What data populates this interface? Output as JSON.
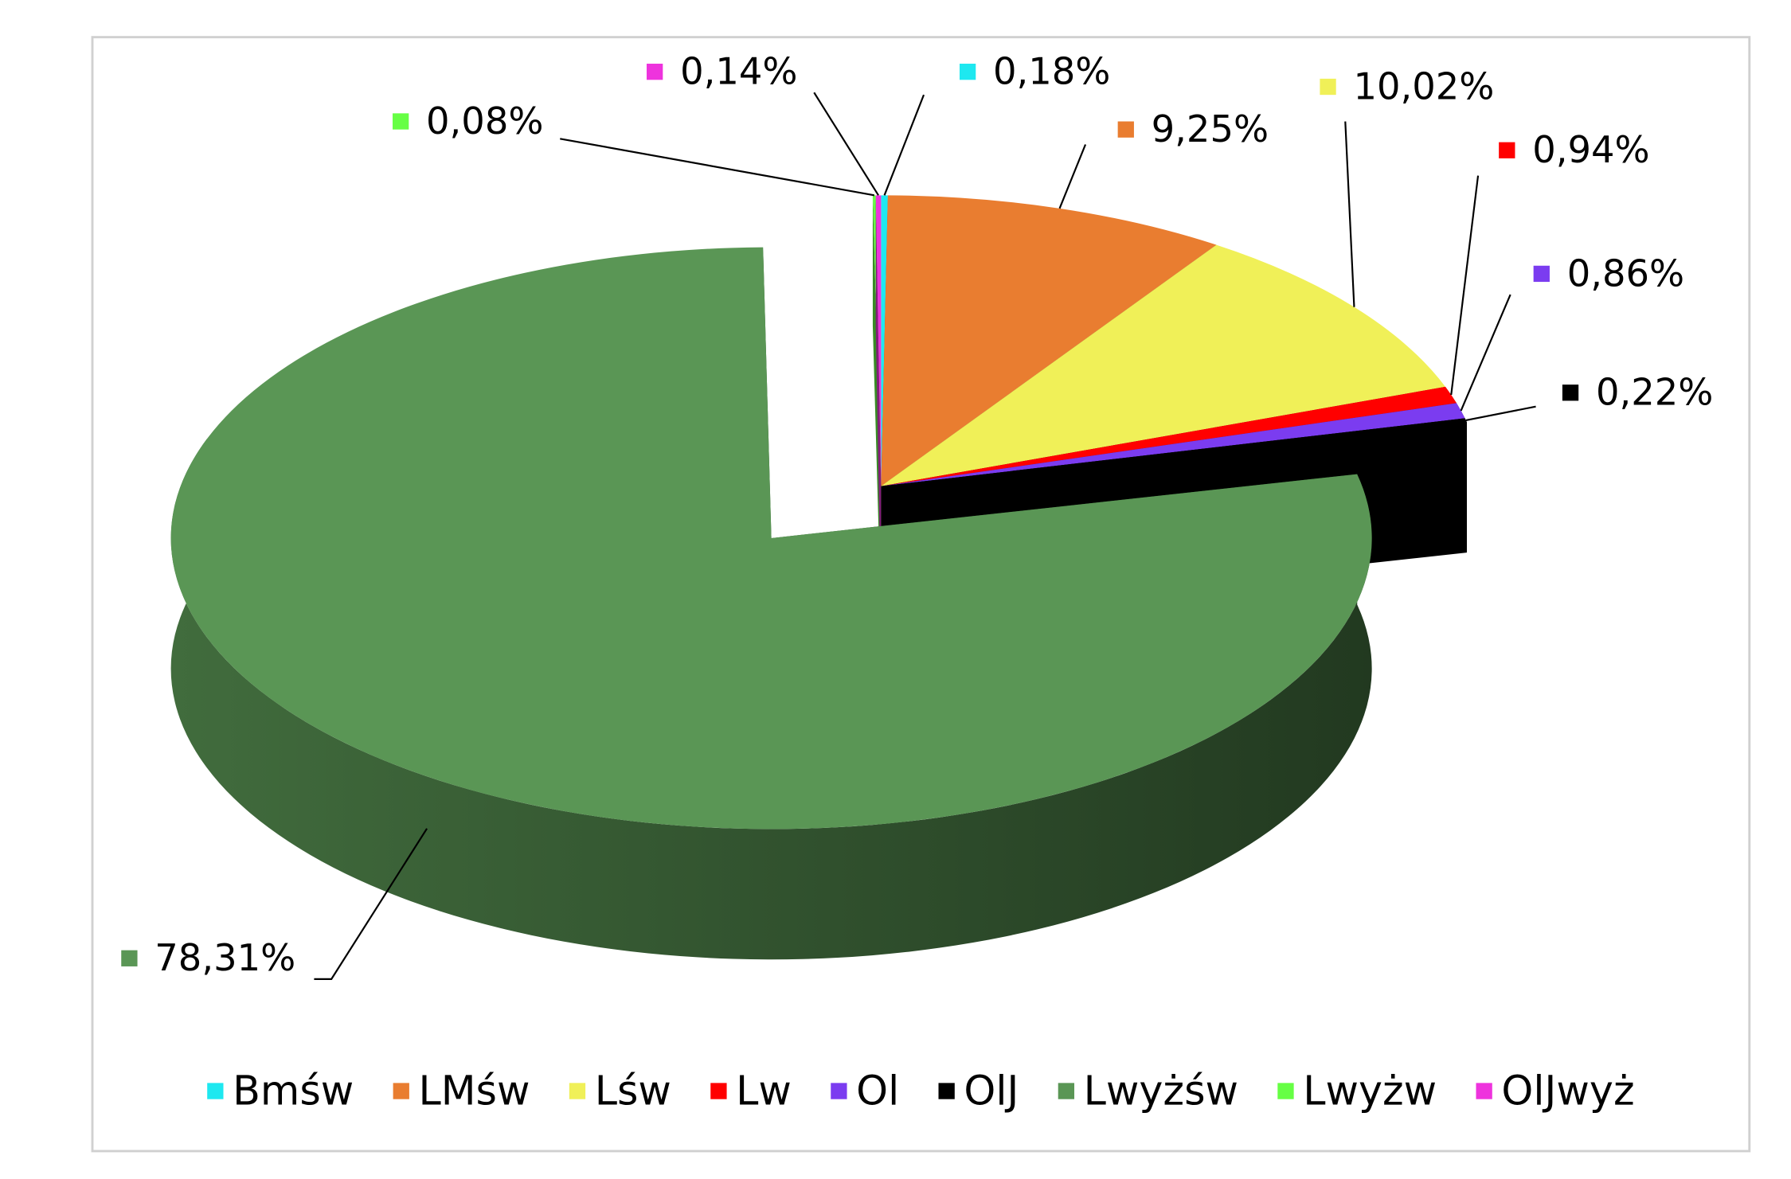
{
  "chart_data": {
    "type": "pie",
    "categories": [
      "Bmśw",
      "LMśw",
      "Lśw",
      "Lw",
      "Ol",
      "OlJ",
      "Lwyżśw",
      "Lwyżw",
      "OlJwyż"
    ],
    "values": [
      0.18,
      9.25,
      10.02,
      0.94,
      0.86,
      0.22,
      78.31,
      0.08,
      0.14
    ],
    "value_labels": [
      "0,18%",
      "9,25%",
      "10,02%",
      "0,94%",
      "0,86%",
      "0,22%",
      "78,31%",
      "0,08%",
      "0,14%"
    ],
    "colors": [
      "#1ee8f0",
      "#e97d30",
      "#f0f058",
      "#ff0000",
      "#7b3cf0",
      "#000000",
      "#5a9655",
      "#66ff44",
      "#ee33dd"
    ],
    "legend": "bottom"
  }
}
